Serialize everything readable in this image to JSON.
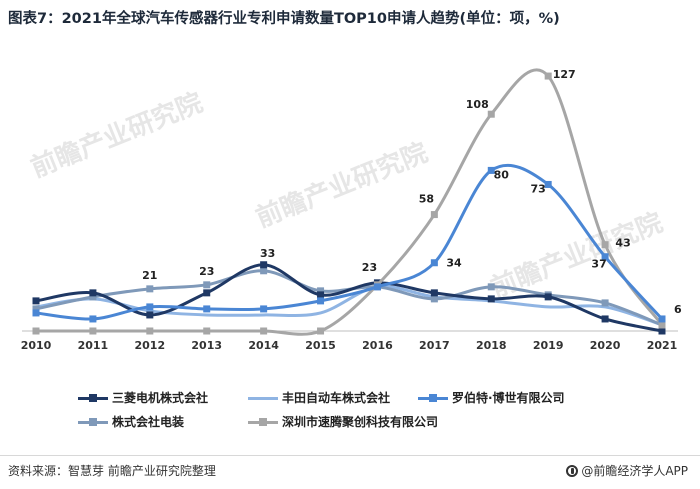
{
  "title": "图表7：2021年全球汽车传感器行业专利申请数量TOP10申请人趋势(单位：项，%)",
  "watermark": "前瞻产业研究院",
  "footer": {
    "source": "资料来源：智慧芽 前瞻产业研究院整理",
    "brand": "@前瞻经济学人APP"
  },
  "chart_data": {
    "type": "line",
    "title": "2021年全球汽车传感器行业专利申请数量TOP10申请人趋势(单位：项，%)",
    "x": [
      "2010",
      "2011",
      "2012",
      "2013",
      "2014",
      "2015",
      "2016",
      "2017",
      "2018",
      "2019",
      "2020",
      "2021"
    ],
    "ylim": [
      0,
      135
    ],
    "series": [
      {
        "name": "三菱电机株式会社",
        "color": "#1f3864",
        "marker": "square",
        "values": [
          15,
          19,
          8,
          19,
          33,
          18,
          24,
          19,
          16,
          17,
          6,
          0
        ],
        "labels": []
      },
      {
        "name": "丰田自动车株式会社",
        "color": "#8fb4e3",
        "marker": "none",
        "values": [
          12,
          16,
          10,
          8,
          8,
          9,
          22,
          17,
          15,
          12,
          12,
          3
        ],
        "labels": []
      },
      {
        "name": "罗伯特·博世有限公司",
        "color": "#4a86d4",
        "marker": "square",
        "values": [
          9,
          6,
          12,
          11,
          11,
          15,
          22,
          34,
          80,
          73,
          37,
          6
        ],
        "labels": [
          null,
          null,
          null,
          null,
          null,
          null,
          null,
          "34",
          "80",
          "73",
          "37",
          "6"
        ]
      },
      {
        "name": "株式会社电装",
        "color": "#7f99b9",
        "marker": "square",
        "values": [
          11,
          17,
          21,
          23,
          30,
          20,
          22,
          16,
          22,
          18,
          14,
          3
        ],
        "labels": [
          null,
          null,
          "21",
          "23",
          null,
          null,
          null,
          null,
          null,
          null,
          null,
          null
        ]
      },
      {
        "name": "深圳市速腾聚创科技有限公司",
        "color": "#a6a6a6",
        "marker": "square",
        "values": [
          0,
          0,
          0,
          0,
          0,
          0,
          23,
          58,
          108,
          127,
          43,
          3
        ],
        "labels": [
          null,
          null,
          null,
          null,
          null,
          null,
          "23",
          "58",
          "108",
          "127",
          "43",
          null
        ]
      }
    ],
    "extra_labels": [
      {
        "x": "2014",
        "text": "33"
      }
    ]
  }
}
